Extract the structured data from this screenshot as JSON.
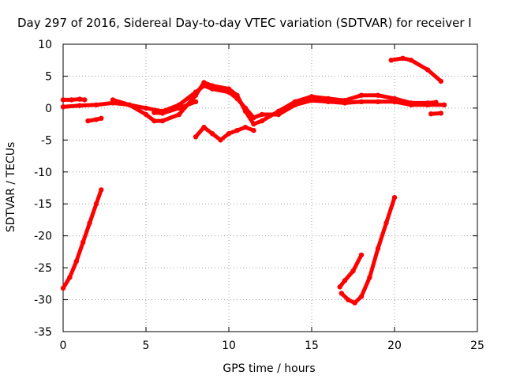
{
  "chart_data": {
    "type": "scatter",
    "title": "Day 297 of 2016, Sidereal Day-to-day VTEC variation (SDTVAR) for receiver I",
    "xlabel": "GPS time / hours",
    "ylabel": "SDTVAR / TECUs",
    "xlim": [
      0,
      25
    ],
    "ylim": [
      -35,
      10
    ],
    "x_ticks": [
      0,
      5,
      10,
      15,
      20,
      25
    ],
    "y_ticks": [
      10,
      5,
      0,
      -5,
      -10,
      -15,
      -20,
      -25,
      -30,
      -35
    ],
    "grid": true,
    "legend": "none",
    "color": "#ff0000",
    "series": [
      {
        "values": [
          [
            0.0,
            -28.2
          ],
          [
            0.4,
            -26.5
          ],
          [
            0.8,
            -24.0
          ],
          [
            1.2,
            -21.0
          ],
          [
            1.6,
            -18.0
          ],
          [
            2.0,
            -15.0
          ],
          [
            2.3,
            -12.8
          ]
        ]
      },
      {
        "values": [
          [
            0.0,
            0.2
          ],
          [
            1.0,
            0.4
          ],
          [
            2.0,
            0.5
          ],
          [
            3.0,
            0.8
          ],
          [
            4.0,
            0.5
          ],
          [
            5.0,
            0.0
          ],
          [
            6.0,
            -0.5
          ],
          [
            7.0,
            0.5
          ],
          [
            8.0,
            2.5
          ],
          [
            8.5,
            3.5
          ],
          [
            9.0,
            3.0
          ],
          [
            10.0,
            2.5
          ],
          [
            10.5,
            1.5
          ],
          [
            11.0,
            0.0
          ],
          [
            11.5,
            -1.5
          ],
          [
            12.0,
            -1.0
          ],
          [
            13.0,
            -1.0
          ],
          [
            14.0,
            0.5
          ],
          [
            15.0,
            1.2
          ],
          [
            16.0,
            1.0
          ],
          [
            17.0,
            0.8
          ],
          [
            18.0,
            1.0
          ],
          [
            19.0,
            1.0
          ],
          [
            20.0,
            1.0
          ],
          [
            21.0,
            0.5
          ],
          [
            22.0,
            0.5
          ],
          [
            23.0,
            0.5
          ]
        ]
      },
      {
        "values": [
          [
            0.0,
            1.3
          ],
          [
            0.5,
            1.3
          ],
          [
            1.0,
            1.4
          ],
          [
            1.3,
            1.3
          ]
        ]
      },
      {
        "values": [
          [
            1.5,
            -2.0
          ],
          [
            2.0,
            -1.8
          ],
          [
            2.3,
            -1.6
          ]
        ]
      },
      {
        "values": [
          [
            3.0,
            1.3
          ],
          [
            4.0,
            0.5
          ],
          [
            5.0,
            -1.0
          ],
          [
            5.5,
            -2.0
          ],
          [
            6.0,
            -2.0
          ],
          [
            7.0,
            -1.0
          ],
          [
            8.0,
            2.0
          ],
          [
            8.5,
            4.0
          ],
          [
            9.0,
            3.5
          ],
          [
            10.0,
            3.0
          ],
          [
            10.5,
            2.0
          ],
          [
            11.0,
            -0.5
          ],
          [
            11.5,
            -2.5
          ],
          [
            12.0,
            -2.0
          ],
          [
            13.0,
            -0.5
          ],
          [
            14.0,
            1.0
          ],
          [
            15.0,
            1.8
          ],
          [
            16.0,
            1.5
          ],
          [
            17.0,
            1.2
          ],
          [
            18.0,
            2.0
          ],
          [
            19.0,
            2.0
          ],
          [
            20.0,
            1.5
          ],
          [
            21.0,
            0.8
          ],
          [
            22.0,
            0.8
          ],
          [
            22.5,
            0.9
          ]
        ]
      },
      {
        "values": [
          [
            5.5,
            -0.7
          ],
          [
            6.0,
            -0.8
          ],
          [
            7.0,
            0.0
          ],
          [
            8.0,
            1.0
          ]
        ]
      },
      {
        "values": [
          [
            8.0,
            -4.5
          ],
          [
            8.5,
            -3.0
          ],
          [
            9.0,
            -4.0
          ],
          [
            9.5,
            -5.0
          ],
          [
            10.0,
            -4.0
          ],
          [
            10.5,
            -3.5
          ],
          [
            11.0,
            -3.0
          ],
          [
            11.5,
            -3.5
          ]
        ]
      },
      {
        "values": [
          [
            16.7,
            -28.0
          ],
          [
            17.0,
            -27.0
          ],
          [
            17.5,
            -25.5
          ],
          [
            18.0,
            -23.0
          ]
        ]
      },
      {
        "values": [
          [
            16.8,
            -29.0
          ],
          [
            17.2,
            -30.0
          ],
          [
            17.6,
            -30.5
          ],
          [
            18.0,
            -29.5
          ],
          [
            18.5,
            -26.5
          ],
          [
            19.0,
            -22.0
          ],
          [
            19.5,
            -18.0
          ],
          [
            20.0,
            -14.0
          ]
        ]
      },
      {
        "values": [
          [
            19.8,
            7.5
          ],
          [
            20.5,
            7.8
          ],
          [
            21.0,
            7.5
          ],
          [
            22.0,
            6.0
          ],
          [
            22.8,
            4.2
          ]
        ]
      },
      {
        "values": [
          [
            22.2,
            -0.9
          ],
          [
            22.8,
            -0.8
          ]
        ]
      }
    ]
  }
}
